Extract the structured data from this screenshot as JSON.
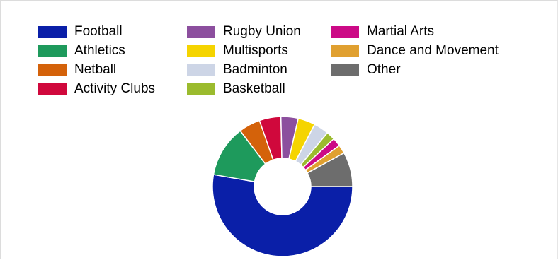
{
  "chart_data": {
    "type": "pie",
    "style": "donut",
    "legend_position": "top",
    "categories": [
      "Football",
      "Athletics",
      "Netball",
      "Activity Clubs",
      "Rugby Union",
      "Multisports",
      "Badminton",
      "Basketball",
      "Martial Arts",
      "Dance and Movement",
      "Other"
    ],
    "values": [
      53,
      12,
      5,
      5,
      4,
      4,
      3.5,
      2,
      2,
      2,
      8
    ],
    "colors": [
      "#0a1fa8",
      "#1e9a5c",
      "#d4620a",
      "#d0083c",
      "#8c4f9e",
      "#f5d400",
      "#cdd5e6",
      "#9bbb2e",
      "#cc0a86",
      "#e0a030",
      "#6d6d6d"
    ]
  }
}
